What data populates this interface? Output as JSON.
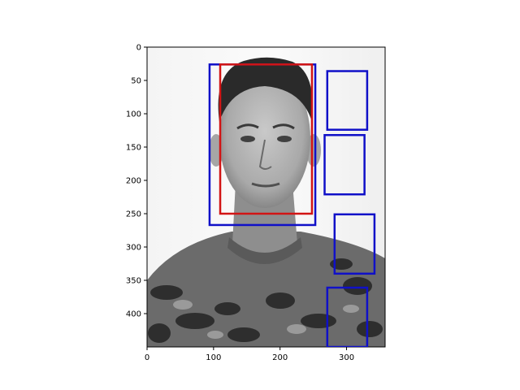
{
  "figure": {
    "photo_subject": "portrait of a man in camouflage uniform",
    "axes": {
      "x": {
        "range": [
          0,
          358
        ],
        "ticks": [
          0,
          100,
          200,
          300
        ]
      },
      "y": {
        "range": [
          0,
          450
        ],
        "inverted": true,
        "ticks": [
          0,
          50,
          100,
          150,
          200,
          250,
          300,
          350,
          400
        ]
      }
    },
    "colors": {
      "blue_boxes": "#1010c8",
      "red_box": "#d21414",
      "frame": "#000000"
    },
    "boxes": [
      {
        "color": "blue",
        "x0": 94,
        "y0": 26,
        "x1": 253,
        "y1": 267
      },
      {
        "color": "red",
        "x0": 110,
        "y0": 26,
        "x1": 248,
        "y1": 250
      },
      {
        "color": "blue",
        "x0": 271,
        "y0": 36,
        "x1": 331,
        "y1": 124
      },
      {
        "color": "blue",
        "x0": 267,
        "y0": 132,
        "x1": 327,
        "y1": 221
      },
      {
        "color": "blue",
        "x0": 282,
        "y0": 251,
        "x1": 342,
        "y1": 340
      },
      {
        "color": "blue",
        "x0": 271,
        "y0": 361,
        "x1": 331,
        "y1": 450
      }
    ]
  }
}
